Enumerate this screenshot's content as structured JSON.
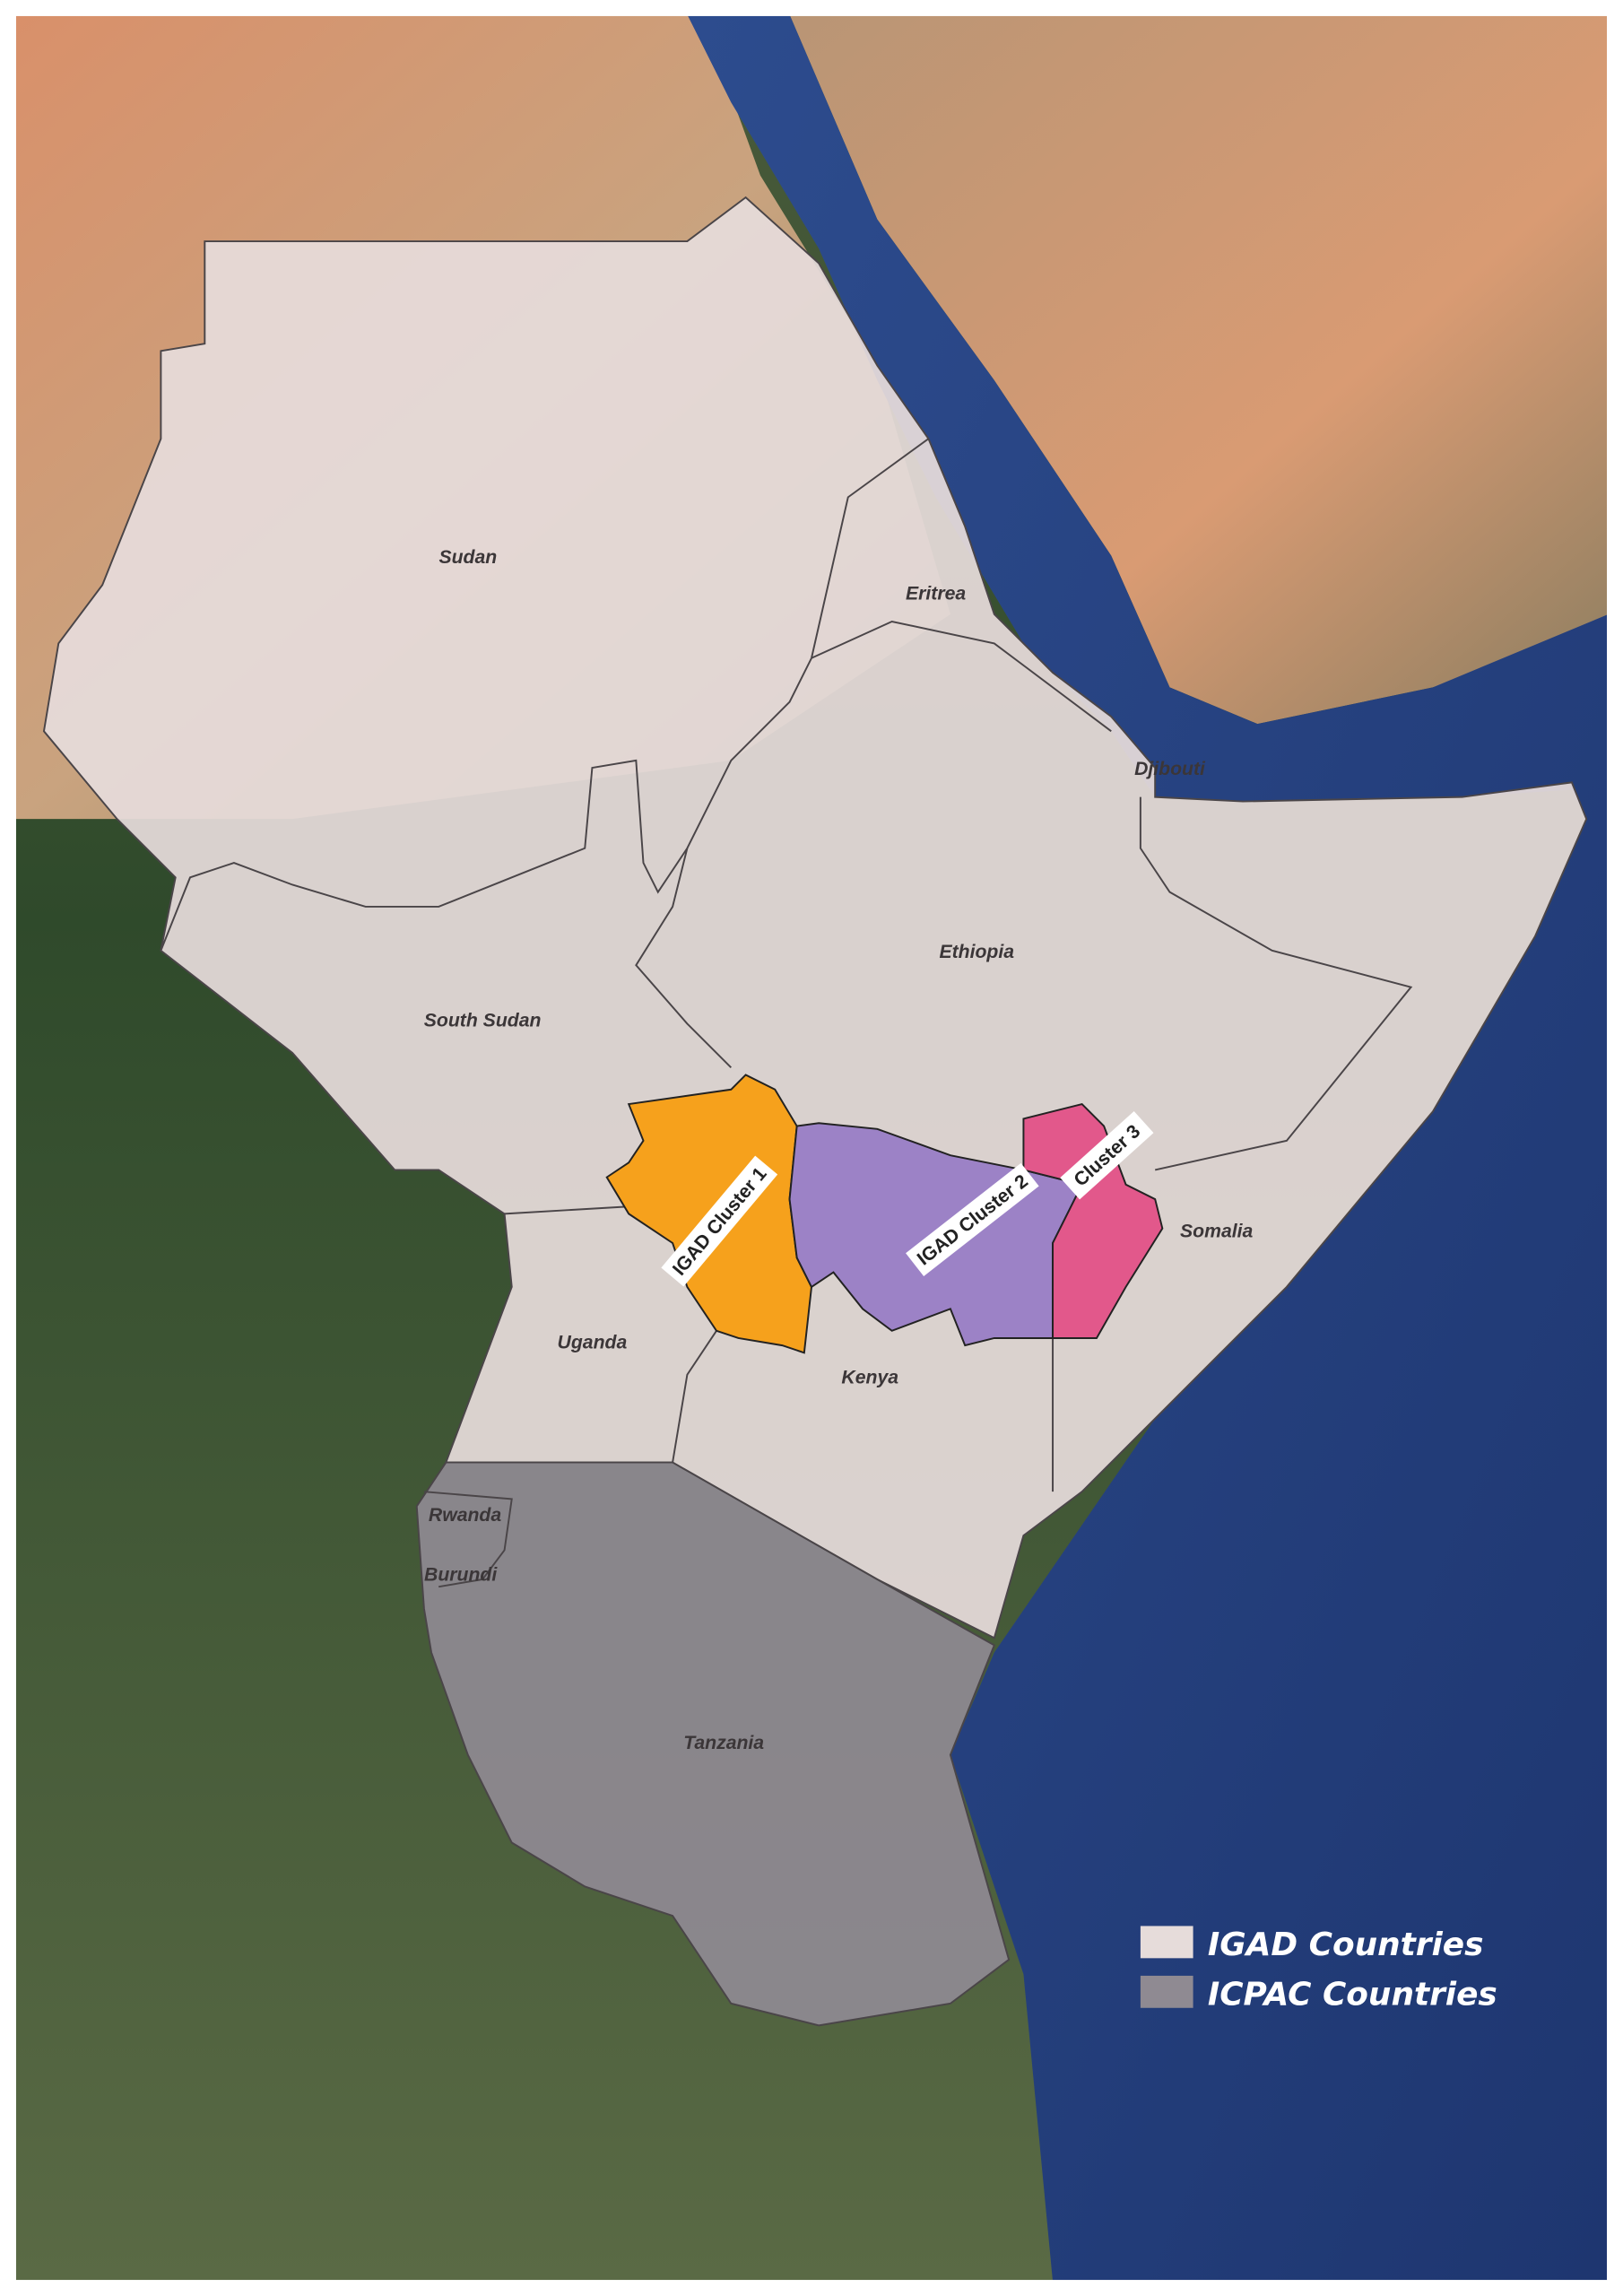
{
  "countries": [
    "Sudan",
    "Eritrea",
    "Djibouti",
    "Ethiopia",
    "South Sudan",
    "Somalia",
    "Uganda",
    "Kenya",
    "Rwanda",
    "Burundi",
    "Tanzania"
  ],
  "clusters": [
    "IGAD Cluster 1",
    "IGAD Cluster 2",
    "Cluster 3"
  ],
  "legend": [
    "IGAD Countries",
    "ICPAC Countries"
  ]
}
